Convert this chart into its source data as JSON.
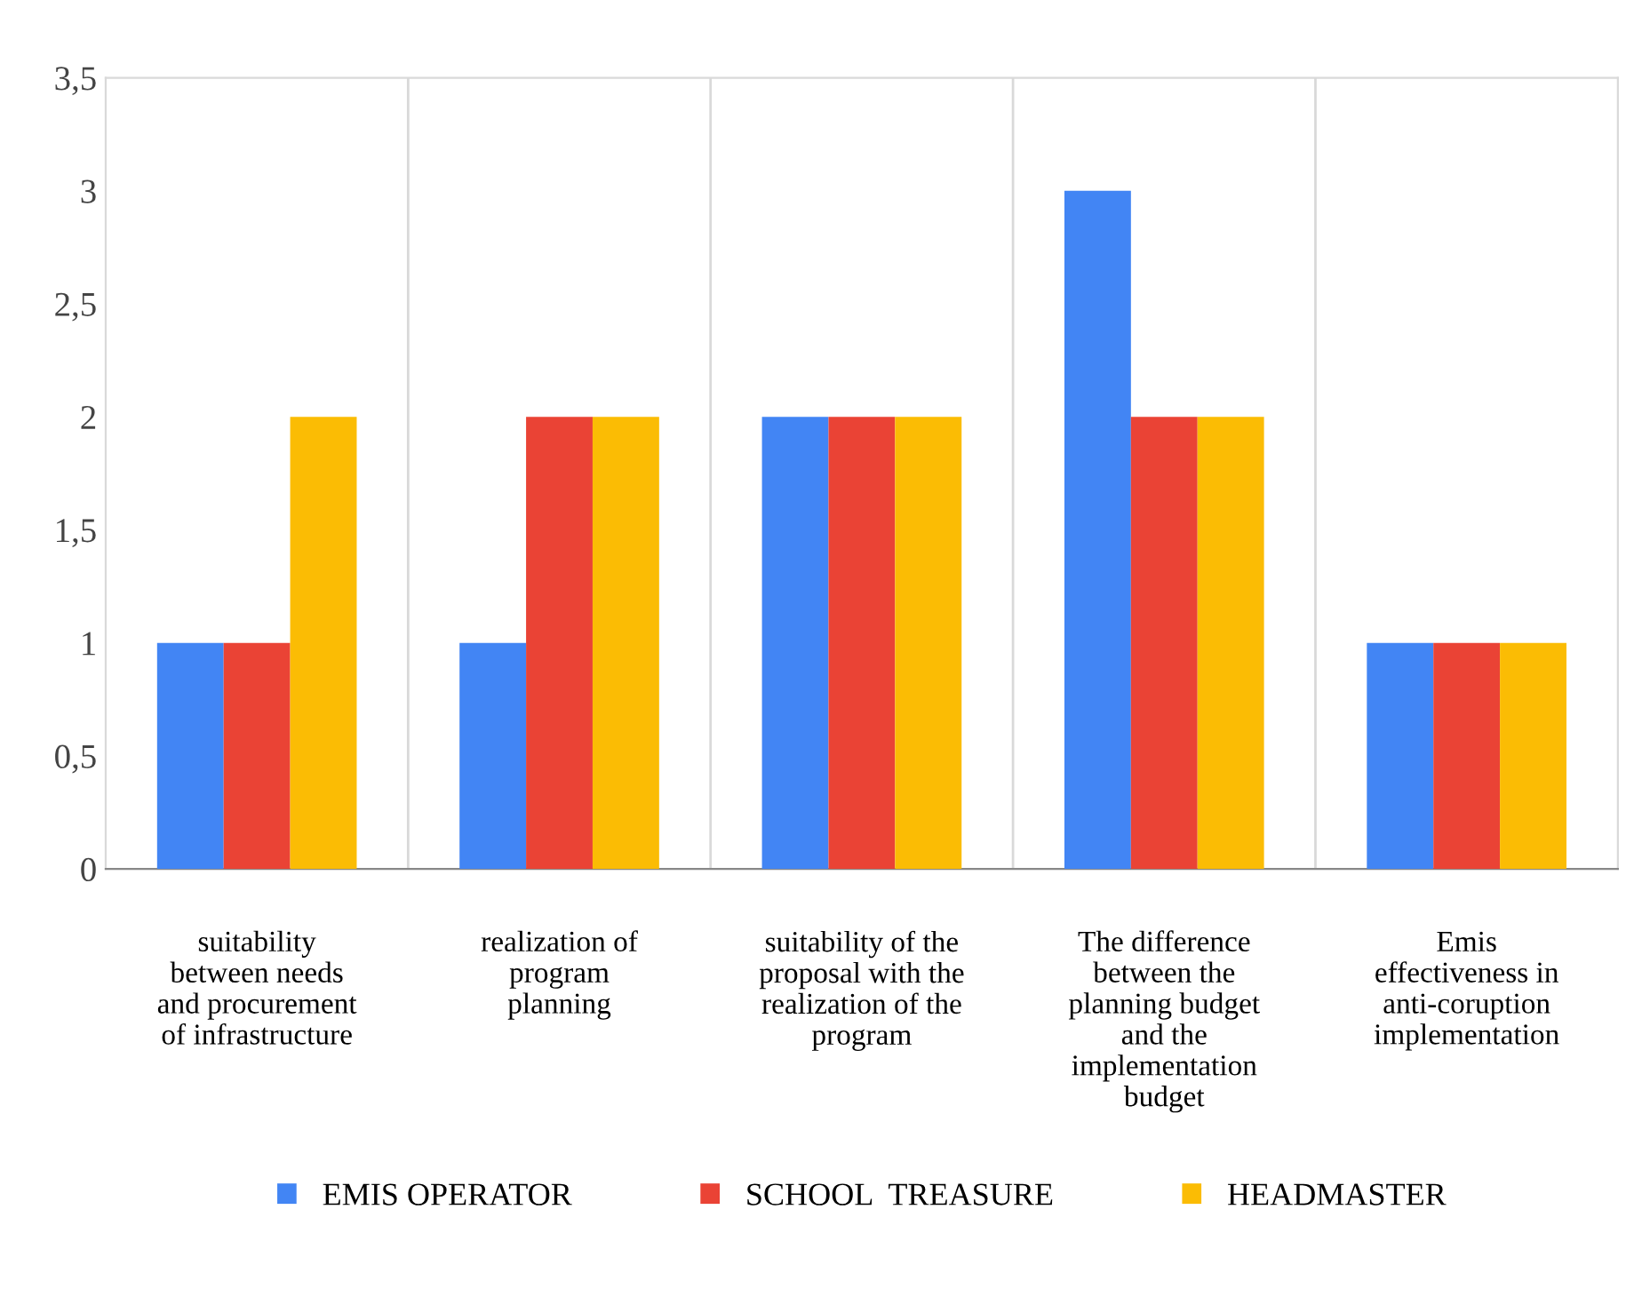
{
  "chart_data": {
    "type": "bar",
    "categories": [
      "suitability\nbetween needs\nand procurement\nof infrastructure",
      "realization of\nprogram\nplanning",
      "suitability of the\nproposal with the\nrealization of the\nprogram",
      "The difference\nbetween the\nplanning budget\nand the\nimplementation\nbudget",
      "Emis\neffectiveness in\nanti-coruption\nimplementation"
    ],
    "series": [
      {
        "name": "EMIS OPERATOR",
        "color": "#4285f4",
        "values": [
          1,
          1,
          2,
          3,
          1
        ]
      },
      {
        "name": "SCHOOL  TREASURE",
        "color": "#ea4335",
        "values": [
          1,
          2,
          2,
          2,
          1
        ]
      },
      {
        "name": "HEADMASTER",
        "color": "#fbbc04",
        "values": [
          2,
          2,
          2,
          2,
          1
        ]
      }
    ],
    "ylim": [
      0,
      3.5
    ],
    "yticks": [
      0,
      {
        "value": 0.5,
        "label": "0,5"
      },
      1,
      {
        "value": 1.5,
        "label": "1,5"
      },
      2,
      {
        "value": 2.5,
        "label": "2,5"
      },
      3,
      {
        "value": 3.5,
        "label": "3,5"
      }
    ],
    "grid": "x",
    "legend": "bottom"
  }
}
